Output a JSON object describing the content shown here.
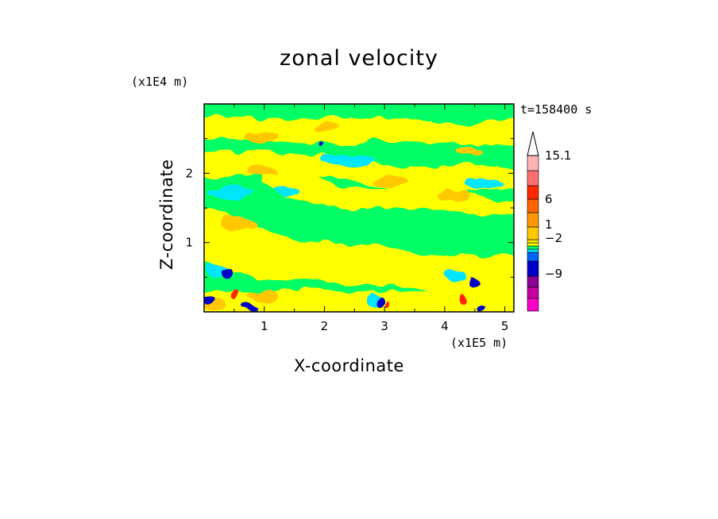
{
  "chart_data": {
    "type": "heatmap",
    "title": "zonal velocity",
    "xlabel": "X-coordinate",
    "ylabel": "Z-coordinate",
    "x_scale_label": "(x1E5 m)",
    "y_scale_label": "(x1E4 m)",
    "time_label": "t=158400 s",
    "xlim": [
      0,
      5.15
    ],
    "ylim": [
      0,
      3.0
    ],
    "x_ticks": [
      "1",
      "2",
      "3",
      "4",
      "5"
    ],
    "y_ticks": [
      "1",
      "2"
    ],
    "colorbar": {
      "labels": [
        "15.1",
        "6",
        "1",
        "−2",
        "−9"
      ],
      "colors": [
        "#ff00c8",
        "#c800a0",
        "#8c0096",
        "#0000c8",
        "#0064ff",
        "#00e6ff",
        "#00ff64",
        "#ffff00",
        "#ffe600",
        "#ffc800",
        "#ff9600",
        "#ff6400",
        "#ff2800",
        "#ff6e6e",
        "#ffb4b4"
      ]
    },
    "palette": {
      "background": "#00ff64",
      "yellow": "#ffff00",
      "orange": "#ffc800",
      "cyan": "#00e6ff",
      "blue": "#0000c8",
      "red": "#ff2800"
    }
  }
}
